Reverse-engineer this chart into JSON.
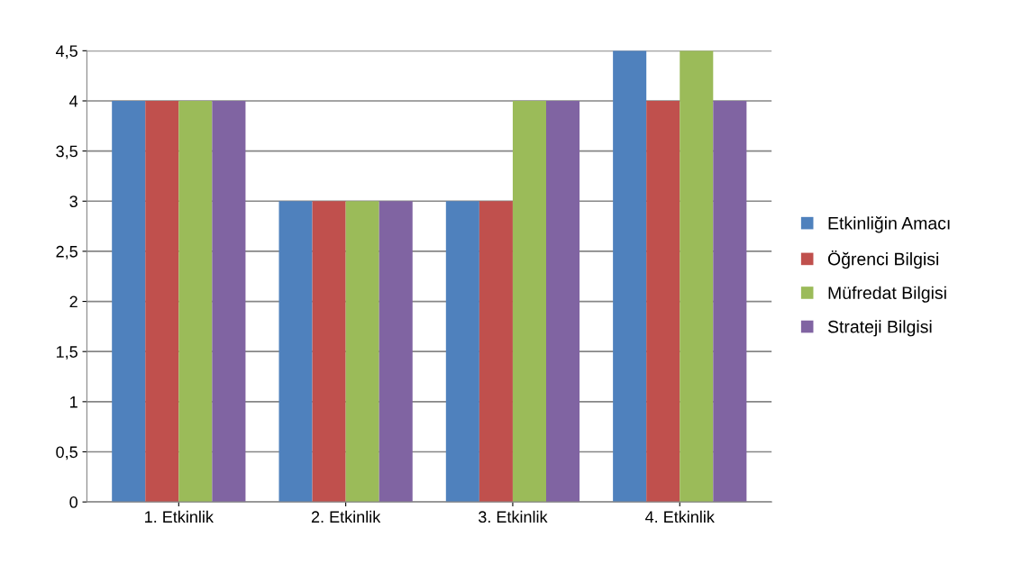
{
  "chart_data": {
    "type": "bar",
    "categories": [
      "1. Etkinlik",
      "2. Etkinlik",
      "3. Etkinlik",
      "4. Etkinlik"
    ],
    "series": [
      {
        "name": "Etkinliğin Amacı",
        "color": "#4f81bd",
        "values": [
          4,
          3,
          3,
          4.5
        ]
      },
      {
        "name": "Öğrenci Bilgisi",
        "color": "#c0504d",
        "values": [
          4,
          3,
          3,
          4
        ]
      },
      {
        "name": "Müfredat Bilgisi",
        "color": "#9bbb59",
        "values": [
          4,
          3,
          4,
          4.5
        ]
      },
      {
        "name": "Strateji Bilgisi",
        "color": "#8064a2",
        "values": [
          4,
          3,
          4,
          4
        ]
      }
    ],
    "ylim": [
      0,
      4.5
    ],
    "yticks": [
      0,
      {
        "value": 0.5,
        "label": "0,5"
      },
      1,
      {
        "value": 1.5,
        "label": "1,5"
      },
      2,
      {
        "value": 2.5,
        "label": "2,5"
      },
      3,
      {
        "value": 3.5,
        "label": "3,5"
      },
      4,
      {
        "value": 4.5,
        "label": "4,5"
      }
    ],
    "grid": "y",
    "legend": "right"
  }
}
